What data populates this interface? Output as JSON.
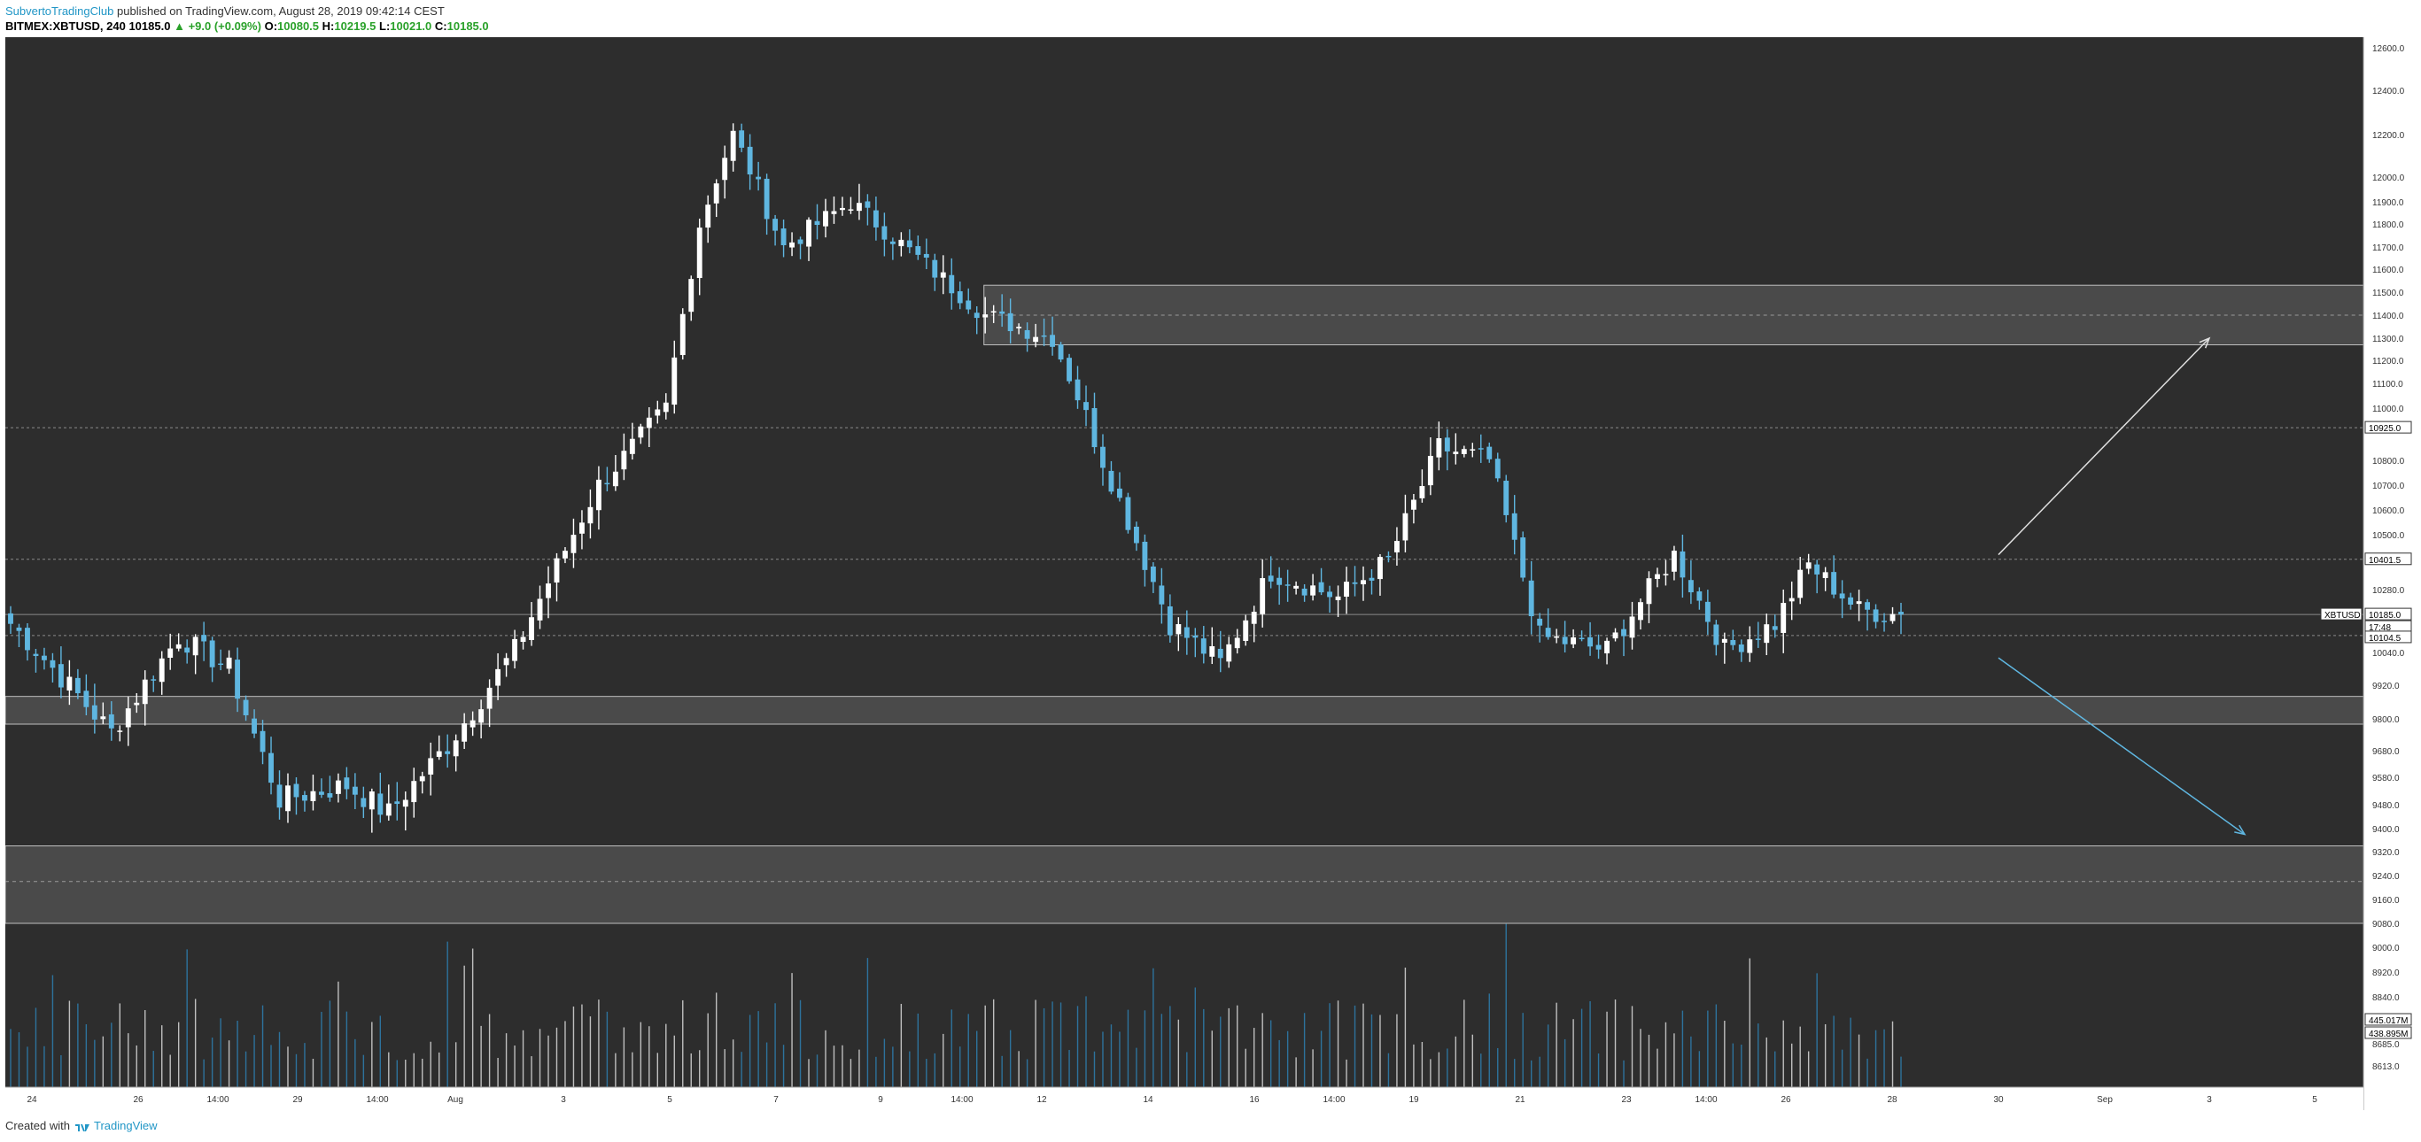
{
  "header": {
    "author": "SubvertoTradingClub",
    "published": "published on TradingView.com, August 28, 2019 09:42:14 CEST",
    "symbol_line": "BITMEX:XBTUSD, 240",
    "last": "10185.0",
    "change": "+9.0 (+0.09%)",
    "o_label": "O:",
    "o_value": "10080.5",
    "h_label": "H:",
    "h_value": "10219.5",
    "l_label": "L:",
    "l_value": "10021.0",
    "c_label": "C:",
    "c_value": "10185.0"
  },
  "footer": {
    "created": "Created with",
    "brand": "TradingView"
  },
  "colors": {
    "background": "#2d2d2d",
    "up": "#ffffff",
    "down": "#5fb6e0",
    "zone": "#4a4a4a",
    "zone_border": "#bfbfbf",
    "volume_up": "#d9d9d9",
    "volume_down": "#2e7fb0"
  },
  "chart_data": {
    "type": "candlestick",
    "x_tick_labels": [
      "24",
      "26",
      "14:00",
      "29",
      "14:00",
      "Aug",
      "3",
      "5",
      "7",
      "9",
      "14:00",
      "12",
      "14",
      "16",
      "14:00",
      "19",
      "21",
      "23",
      "14:00",
      "26",
      "28",
      "30",
      "Sep",
      "3",
      "5"
    ],
    "y_tick_labels": [
      "12600.0",
      "12400.0",
      "12200.0",
      "12000.0",
      "11900.0",
      "11800.0",
      "11700.0",
      "11600.0",
      "11500.0",
      "11400.0",
      "11300.0",
      "11200.0",
      "11100.0",
      "11000.0",
      "10800.0",
      "10700.0",
      "10600.0",
      "10500.0",
      "10280.0",
      "10040.0",
      "9920.0",
      "9800.0",
      "9680.0",
      "9580.0",
      "9480.0",
      "9400.0",
      "9320.0",
      "9240.0",
      "9160.0",
      "9080.0",
      "9000.0",
      "8920.0",
      "8840.0",
      "8685.0",
      "8613.0"
    ],
    "price_labels": [
      {
        "text": "10925.0",
        "value": 10925.0,
        "style": "line"
      },
      {
        "text": "10401.5",
        "value": 10401.5,
        "style": "line"
      },
      {
        "text": "XBTUSD",
        "value": 10185.0,
        "style": "symbol"
      },
      {
        "text": "10185.0",
        "value": 10185.0,
        "style": "line"
      },
      {
        "text": "17:48",
        "value": 10185.0,
        "style": "timer"
      },
      {
        "text": "10104.5",
        "value": 10104.5,
        "style": "line"
      },
      {
        "text": "445.017M",
        "value": null,
        "style": "volume"
      },
      {
        "text": "438.895M",
        "value": null,
        "style": "volume"
      }
    ],
    "zones": [
      {
        "from": 11270,
        "to": 11530,
        "mid": 11400,
        "start_bar": 0.415
      },
      {
        "from": 9780,
        "to": 9880,
        "mid": null,
        "start_bar": 0.0
      },
      {
        "from": 9080,
        "to": 9340,
        "mid": 9220,
        "start_bar": 0.0
      }
    ],
    "horizontal_levels": [
      10925.0,
      10401.5,
      10185.0,
      10104.5
    ],
    "projections": [
      {
        "from_x": 30.0,
        "from_y": 10420,
        "to_x": 3.0,
        "to_y": 11300,
        "dir": "up"
      },
      {
        "from_x": 30.0,
        "from_y": 10020,
        "to_x": 3.3,
        "to_y": 9380,
        "dir": "down"
      }
    ],
    "anchors": [
      {
        "bar": 0,
        "price": 10150
      },
      {
        "bar": 12,
        "price": 9750
      },
      {
        "bar": 20,
        "price": 10100
      },
      {
        "bar": 26,
        "price": 9980
      },
      {
        "bar": 32,
        "price": 9500
      },
      {
        "bar": 40,
        "price": 9550
      },
      {
        "bar": 45,
        "price": 9450
      },
      {
        "bar": 52,
        "price": 9700
      },
      {
        "bar": 60,
        "price": 10050
      },
      {
        "bar": 70,
        "price": 10700
      },
      {
        "bar": 78,
        "price": 11000
      },
      {
        "bar": 82,
        "price": 11800
      },
      {
        "bar": 86,
        "price": 12200
      },
      {
        "bar": 92,
        "price": 11700
      },
      {
        "bar": 100,
        "price": 11900
      },
      {
        "bar": 108,
        "price": 11650
      },
      {
        "bar": 116,
        "price": 11400
      },
      {
        "bar": 124,
        "price": 11300
      },
      {
        "bar": 130,
        "price": 10800
      },
      {
        "bar": 138,
        "price": 10150
      },
      {
        "bar": 144,
        "price": 10000
      },
      {
        "bar": 150,
        "price": 10350
      },
      {
        "bar": 158,
        "price": 10250
      },
      {
        "bar": 164,
        "price": 10400
      },
      {
        "bar": 170,
        "price": 10850
      },
      {
        "bar": 176,
        "price": 10800
      },
      {
        "bar": 182,
        "price": 10100
      },
      {
        "bar": 190,
        "price": 10050
      },
      {
        "bar": 198,
        "price": 10420
      },
      {
        "bar": 204,
        "price": 10050
      },
      {
        "bar": 210,
        "price": 10150
      },
      {
        "bar": 214,
        "price": 10380
      },
      {
        "bar": 220,
        "price": 10200
      },
      {
        "bar": 225,
        "price": 10185
      }
    ],
    "bar_count": 226,
    "series": [
      {
        "values": []
      }
    ]
  }
}
